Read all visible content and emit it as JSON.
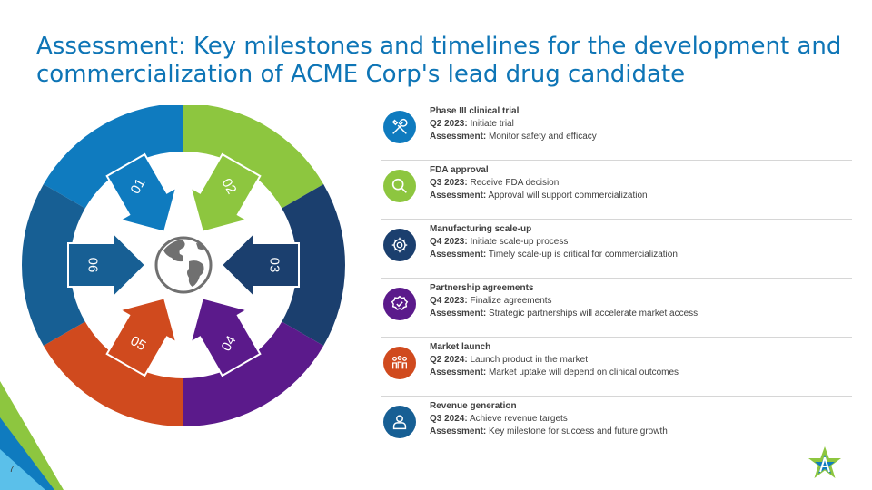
{
  "title": "Assessment: Key milestones and timelines for the development and commercialization of ACME Corp's lead drug candidate",
  "page_number": "7",
  "colors": {
    "title": "#0e75b6",
    "segment_01": "#0f7bbf",
    "segment_02": "#8dc63f",
    "segment_03": "#1b3f6e",
    "segment_04": "#5b1a8b",
    "segment_05": "#d04a1e",
    "segment_06": "#175f94",
    "center_globe": "#707070"
  },
  "diagram": {
    "segments": [
      {
        "num": "01"
      },
      {
        "num": "02"
      },
      {
        "num": "03"
      },
      {
        "num": "04"
      },
      {
        "num": "05"
      },
      {
        "num": "06"
      }
    ]
  },
  "milestones": [
    {
      "heading": "Phase III clinical trial",
      "period": "Q2 2023:",
      "action": "Initiate trial",
      "assess_label": "Assessment:",
      "assessment": "Monitor safety and efficacy",
      "icon": "tools-icon",
      "color": "#0f7bbf"
    },
    {
      "heading": "FDA approval",
      "period": "Q3 2023:",
      "action": "Receive FDA decision",
      "assess_label": "Assessment:",
      "assessment": "Approval will support commercialization",
      "icon": "magnifier-icon",
      "color": "#8dc63f"
    },
    {
      "heading": "Manufacturing scale-up",
      "period": "Q4 2023:",
      "action": "Initiate scale-up process",
      "assess_label": "Assessment:",
      "assessment": "Timely scale-up is critical for commercialization",
      "icon": "gear-icon",
      "color": "#1b3f6e"
    },
    {
      "heading": "Partnership agreements",
      "period": "Q4 2023:",
      "action": "Finalize agreements",
      "assess_label": "Assessment:",
      "assessment": "Strategic partnerships will accelerate market access",
      "icon": "check-badge-icon",
      "color": "#5b1a8b"
    },
    {
      "heading": "Market launch",
      "period": "Q2 2024:",
      "action": "Launch product in the market",
      "assess_label": "Assessment:",
      "assessment": "Market uptake will depend on clinical outcomes",
      "icon": "team-icon",
      "color": "#d04a1e"
    },
    {
      "heading": "Revenue generation",
      "period": "Q3 2024:",
      "action": "Achieve revenue targets",
      "assess_label": "Assessment:",
      "assessment": "Key milestone for success and future growth",
      "icon": "person-icon",
      "color": "#175f94"
    }
  ]
}
